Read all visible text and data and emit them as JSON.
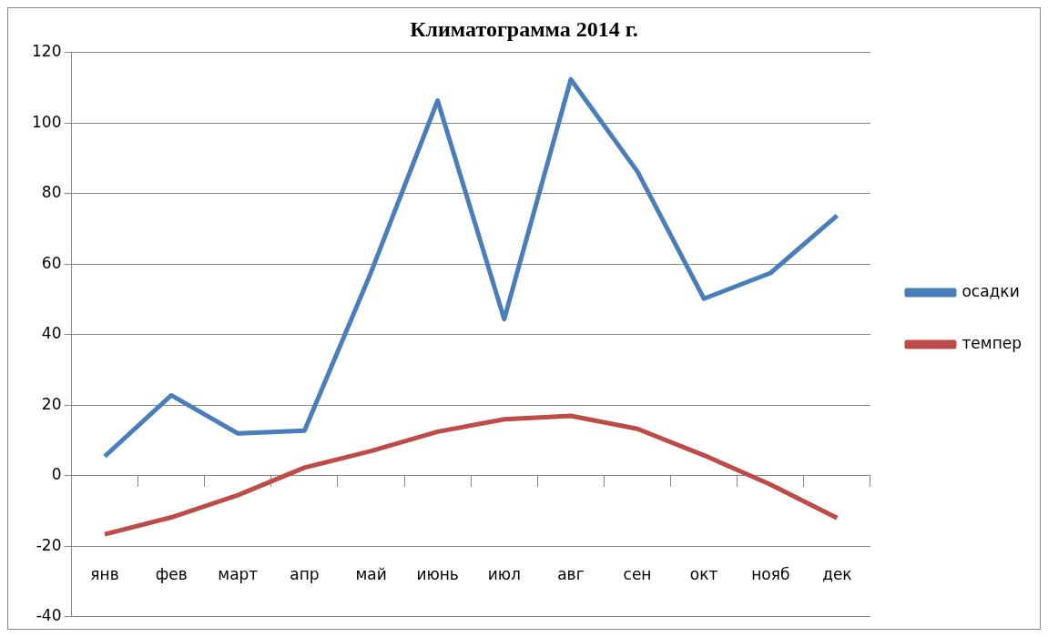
{
  "chart_data": {
    "type": "line",
    "title": "Климатограмма 2014 г.",
    "categories": [
      "янв",
      "фев",
      "март",
      "апр",
      "май",
      "июнь",
      "июл",
      "авг",
      "сен",
      "окт",
      "нояб",
      "дек"
    ],
    "series": [
      {
        "name": "осадки",
        "color": "#4a7ebb",
        "values": [
          5.5,
          22.8,
          12,
          12.8,
          57.7,
          106.4,
          44.4,
          112.4,
          86.3,
          50.2,
          57.5,
          73.8
        ]
      },
      {
        "name": "темпер",
        "color": "#be4b48",
        "values": [
          -16.6,
          -11.8,
          -5.5,
          2.3,
          7,
          12.5,
          16,
          17,
          13.3,
          5.8,
          -2.5,
          -12
        ]
      }
    ],
    "ylim": [
      -40,
      120
    ],
    "yticks": [
      -40,
      -20,
      0,
      20,
      40,
      60,
      80,
      100,
      120
    ],
    "grid": "y",
    "legend": "right",
    "marker": "none",
    "line_style": "solid"
  }
}
